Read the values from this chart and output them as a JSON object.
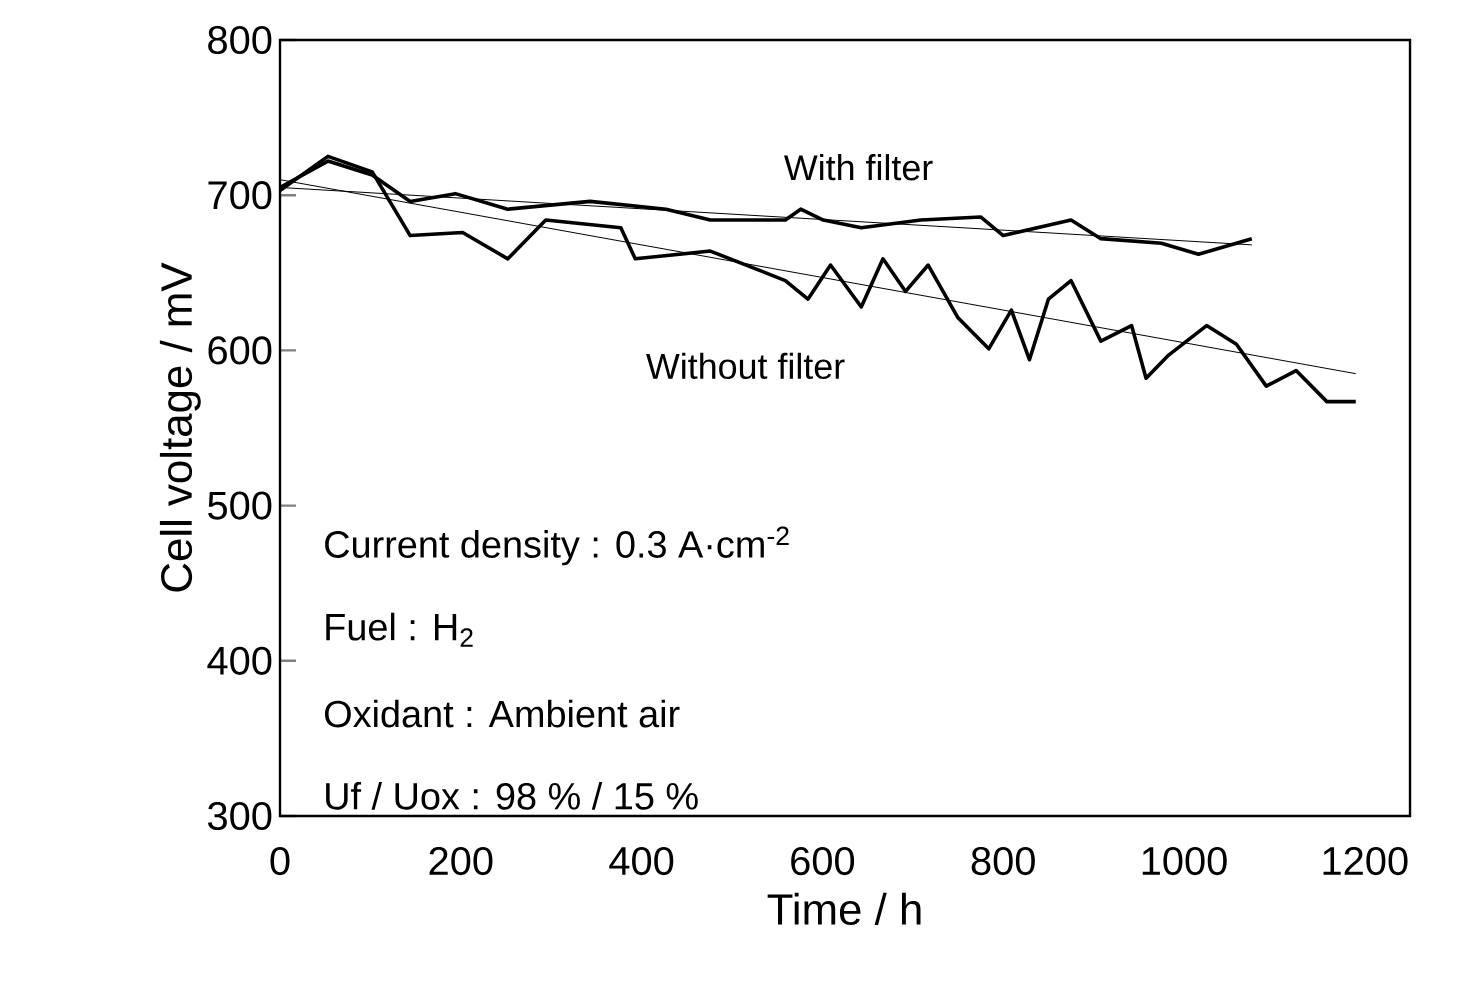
{
  "chart_data": {
    "type": "line",
    "xlabel": "Time / h",
    "ylabel": "Cell voltage / mV",
    "xlim": [
      0,
      1250
    ],
    "ylim": [
      300,
      800
    ],
    "xticks": [
      0,
      200,
      400,
      600,
      800,
      1000,
      1200
    ],
    "yticks": [
      300,
      400,
      500,
      600,
      700,
      800
    ],
    "marker": "none",
    "line_style": "solid",
    "grid": false,
    "legend": false,
    "series": [
      {
        "name": "With filter",
        "color": "#000000",
        "x": [
          0,
          53,
          102,
          144,
          194,
          252,
          343,
          427,
          476,
          559,
          576,
          601,
          643,
          709,
          775,
          800,
          875,
          908,
          975,
          1016,
          1075
        ],
        "values": [
          705,
          722,
          713,
          696,
          701,
          691,
          696,
          691,
          684,
          684,
          691,
          684,
          679,
          684,
          686,
          674,
          684,
          672,
          669,
          662,
          672
        ]
      },
      {
        "name": "Without filter",
        "color": "#000000",
        "x": [
          0,
          53,
          102,
          144,
          202,
          252,
          294,
          377,
          393,
          476,
          559,
          584,
          609,
          643,
          667,
          692,
          717,
          750,
          784,
          809,
          829,
          850,
          875,
          908,
          942,
          958,
          983,
          1025,
          1058,
          1091,
          1124,
          1158,
          1190
        ],
        "values": [
          703,
          725,
          715,
          674,
          676,
          659,
          684,
          679,
          659,
          664,
          645,
          633,
          655,
          628,
          659,
          638,
          655,
          621,
          601,
          626,
          594,
          633,
          645,
          606,
          616,
          582,
          597,
          616,
          604,
          577,
          587,
          567,
          567
        ]
      },
      {
        "color": "#000000",
        "x": [
          0,
          1075
        ],
        "values": [
          705,
          668
        ]
      },
      {
        "color": "#000000",
        "x": [
          0,
          1190
        ],
        "values": [
          710,
          585
        ]
      }
    ],
    "annotations": [
      "Current density : 0.3 A·cm$^{-2}$",
      "Fuel : H$_{2}$",
      "Oxidant : Ambient air",
      "Uf / Uox : 98 % / 15 %"
    ]
  }
}
